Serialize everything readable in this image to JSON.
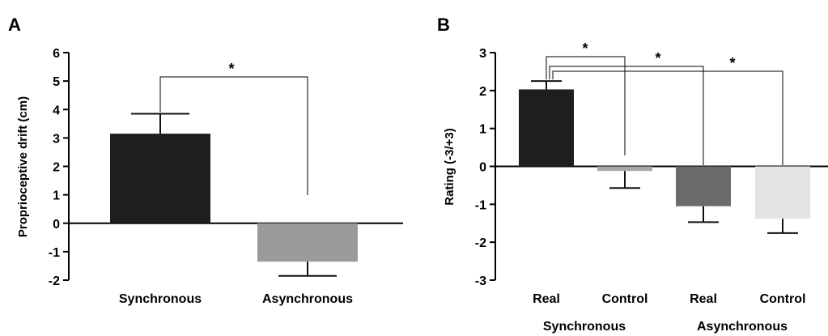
{
  "chart_data": [
    {
      "panel": "A",
      "type": "bar",
      "ylabel": "Proprioceptive drift (cm)",
      "ylim": [
        -2,
        6
      ],
      "yticks": [
        -2,
        -1,
        0,
        1,
        2,
        3,
        4,
        5,
        6
      ],
      "categories": [
        "Synchronous",
        "Asynchronous"
      ],
      "values": [
        3.15,
        -1.35
      ],
      "errors": [
        0.7,
        0.5
      ],
      "colors": [
        "#1e1e1e",
        "#9a9a9a"
      ],
      "significance": [
        {
          "pair": [
            0,
            1
          ],
          "label": "*"
        }
      ]
    },
    {
      "panel": "B",
      "type": "bar",
      "ylabel": "Rating (-3/+3)",
      "ylim": [
        -3,
        3
      ],
      "yticks": [
        -3,
        -2,
        -1,
        0,
        1,
        2,
        3
      ],
      "categories": [
        "Real",
        "Control",
        "Real",
        "Control"
      ],
      "groups": [
        "Synchronous",
        "Asynchronous"
      ],
      "values": [
        2.03,
        -0.12,
        -1.05,
        -1.38
      ],
      "errors": [
        0.22,
        0.45,
        0.42,
        0.38
      ],
      "colors": [
        "#1e1e1e",
        "#a8a8a8",
        "#6a6a6a",
        "#e2e3e5"
      ],
      "significance": [
        {
          "pair": [
            0,
            1
          ],
          "label": "*"
        },
        {
          "pair": [
            0,
            2
          ],
          "label": "*"
        },
        {
          "pair": [
            0,
            3
          ],
          "label": "*"
        }
      ]
    }
  ]
}
